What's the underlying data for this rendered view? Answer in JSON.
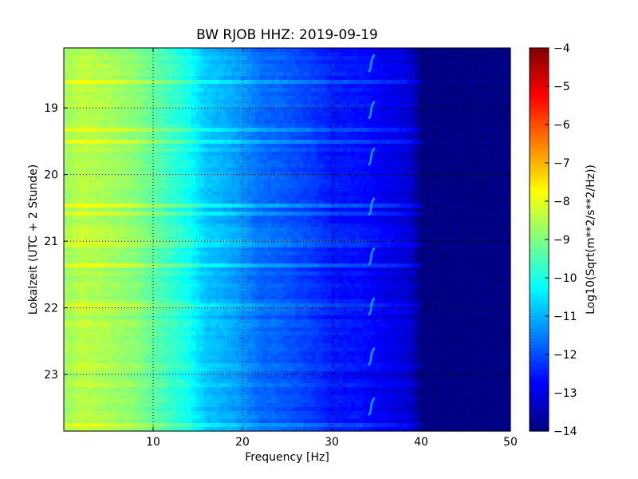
{
  "chart_data": {
    "type": "heatmap",
    "title": "BW RJOB HHZ: 2019-09-19",
    "xlabel": "Frequency [Hz]",
    "ylabel": "Lokalzeit (UTC + 2 Stunde)",
    "colorbar_label": "Log10(Sqrt(m**2/s**2/Hz))",
    "xlim": [
      0,
      50
    ],
    "ylim": [
      18.1,
      23.85
    ],
    "y_inverted": true,
    "grid": true,
    "colormap": "jet",
    "clim": [
      -14,
      -4
    ],
    "x_ticks": [
      10,
      20,
      30,
      40,
      50
    ],
    "y_ticks": [
      19,
      20,
      21,
      22,
      23
    ],
    "colorbar_ticks": [
      "-4",
      "-5",
      "-6",
      "-7",
      "-8",
      "-9",
      "-10",
      "-11",
      "-12",
      "-13",
      "-14"
    ],
    "spectrum_profile": {
      "frequency_hz": [
        0,
        2,
        5,
        8,
        10,
        12,
        14,
        15,
        16,
        18,
        20,
        22,
        24,
        26,
        28,
        30,
        33,
        36,
        38,
        39,
        40,
        42,
        45,
        50
      ],
      "log10_amplitude": [
        -8.7,
        -8.4,
        -8.6,
        -8.9,
        -9.3,
        -9.7,
        -10.1,
        -10.5,
        -10.8,
        -11.0,
        -11.3,
        -11.7,
        -11.8,
        -12.0,
        -12.2,
        -12.5,
        -12.6,
        -12.9,
        -13.1,
        -13.3,
        -14.0,
        -14.0,
        -14.0,
        -14.0
      ]
    },
    "tremor_line_hz": 34.5
  }
}
